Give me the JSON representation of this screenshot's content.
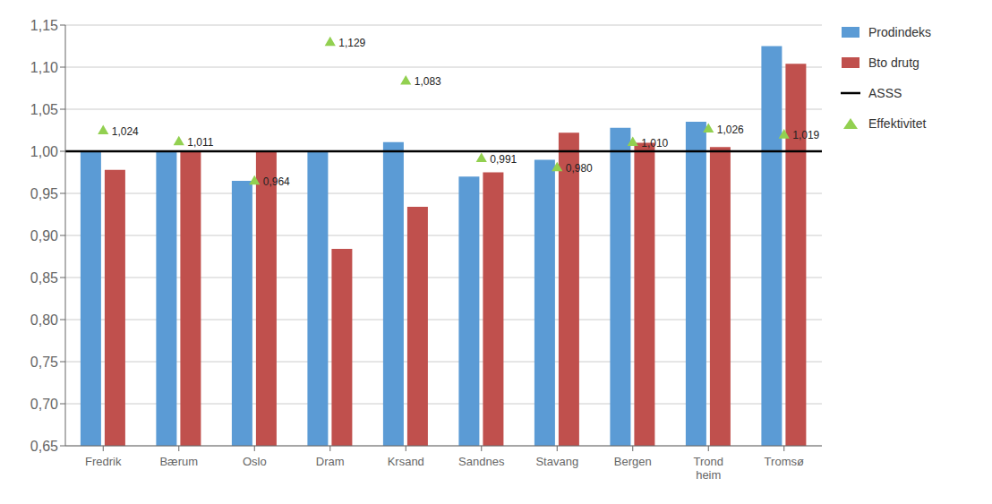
{
  "chart_data": {
    "type": "bar",
    "categories": [
      "Fredrik",
      "Bærum",
      "Oslo",
      "Dram",
      "Krsand",
      "Sandnes",
      "Stavang",
      "Bergen",
      "Trond\nheim",
      "Tromsø"
    ],
    "series": [
      {
        "name": "Prodindeks",
        "type": "bar",
        "color": "#5B9BD5",
        "values": [
          1.0,
          1.001,
          0.965,
          1.0,
          1.011,
          0.97,
          0.99,
          1.028,
          1.035,
          1.125
        ]
      },
      {
        "name": "Bto drutg",
        "type": "bar",
        "color": "#C0504D",
        "values": [
          0.978,
          0.999,
          0.999,
          0.884,
          0.934,
          0.975,
          1.022,
          1.01,
          1.005,
          1.104
        ]
      },
      {
        "name": "ASSS",
        "type": "hline",
        "color": "#000000",
        "value": 1.0
      },
      {
        "name": "Effektivitet",
        "type": "scatter",
        "marker": "triangle",
        "color": "#92D050",
        "values": [
          1.024,
          1.011,
          0.964,
          1.129,
          1.083,
          0.991,
          0.98,
          1.01,
          1.026,
          1.019
        ],
        "value_labels": [
          "1,024",
          "1,011",
          "0,964",
          "1,129",
          "1,083",
          "0,991",
          "0,980",
          "1,010",
          "1,026",
          "1,019"
        ],
        "data_labels": true
      }
    ],
    "ylim": [
      0.65,
      1.15
    ],
    "yticks": [
      {
        "value": 0.65,
        "label": "0,65"
      },
      {
        "value": 0.7,
        "label": "0,70"
      },
      {
        "value": 0.75,
        "label": "0,75"
      },
      {
        "value": 0.8,
        "label": "0,80"
      },
      {
        "value": 0.85,
        "label": "0,85"
      },
      {
        "value": 0.9,
        "label": "0,90"
      },
      {
        "value": 0.95,
        "label": "0,95"
      },
      {
        "value": 1.0,
        "label": "1,00"
      },
      {
        "value": 1.05,
        "label": "1,05"
      },
      {
        "value": 1.1,
        "label": "1,10"
      },
      {
        "value": 1.15,
        "label": "1,15"
      }
    ],
    "grid": true,
    "legend": "right"
  }
}
